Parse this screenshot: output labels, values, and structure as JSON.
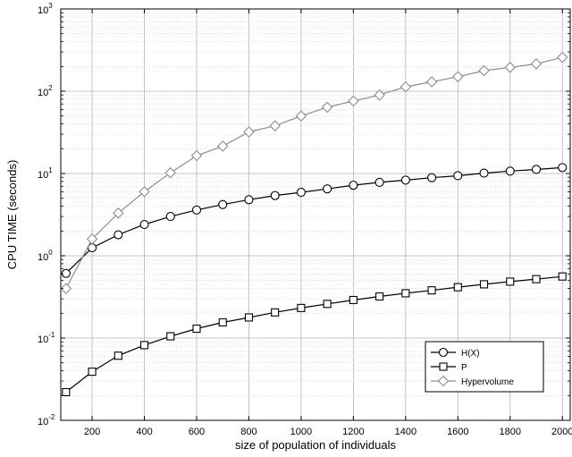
{
  "chart_data": {
    "type": "line",
    "title": "",
    "xlabel": "size of population of individuals",
    "ylabel": "CPU TIME (seconds)",
    "xlim": [
      100,
      2000
    ],
    "ylim_log10": [
      -2,
      3
    ],
    "y_scale": "log",
    "grid": true,
    "legend_position": "bottom-right",
    "x_ticks": [
      200,
      400,
      600,
      800,
      1000,
      1200,
      1400,
      1600,
      1800,
      2000
    ],
    "x_tick_labels": [
      "200",
      "400",
      "600",
      "800",
      "1000",
      "1200",
      "1400",
      "1600",
      "1800",
      "2000"
    ],
    "y_ticks": [
      -2,
      -1,
      0,
      1,
      2,
      3
    ],
    "y_tick_bases": [
      "10",
      "10",
      "10",
      "10",
      "10",
      "10"
    ],
    "y_tick_exponents": [
      "-2",
      "-1",
      "0",
      "1",
      "2",
      "3"
    ],
    "x": [
      100,
      200,
      300,
      400,
      500,
      600,
      700,
      800,
      900,
      1000,
      1100,
      1200,
      1300,
      1400,
      1500,
      1600,
      1700,
      1800,
      1900,
      2000
    ],
    "series": [
      {
        "name": "H(X)",
        "marker": "circle",
        "color": "#000000",
        "values": [
          0.61,
          1.25,
          1.8,
          2.4,
          3.0,
          3.6,
          4.2,
          4.8,
          5.4,
          5.9,
          6.5,
          7.2,
          7.8,
          8.3,
          8.9,
          9.4,
          10.1,
          10.7,
          11.2,
          11.8
        ]
      },
      {
        "name": "P",
        "marker": "square",
        "color": "#000000",
        "values": [
          0.022,
          0.039,
          0.061,
          0.082,
          0.105,
          0.13,
          0.155,
          0.178,
          0.205,
          0.232,
          0.26,
          0.29,
          0.32,
          0.35,
          0.38,
          0.415,
          0.45,
          0.485,
          0.52,
          0.56
        ]
      },
      {
        "name": "Hypervolume",
        "marker": "diamond",
        "color": "#8c8c8c",
        "values": [
          0.4,
          1.6,
          3.3,
          6.0,
          10.2,
          16.5,
          21.5,
          32.0,
          38.0,
          50.0,
          64.0,
          76.0,
          90.0,
          113.0,
          130.0,
          150.0,
          178.0,
          195.0,
          215.0,
          258.0
        ]
      }
    ]
  },
  "legend": {
    "items": [
      {
        "label": "H(X)"
      },
      {
        "label": "P"
      },
      {
        "label": "Hypervolume"
      }
    ]
  }
}
